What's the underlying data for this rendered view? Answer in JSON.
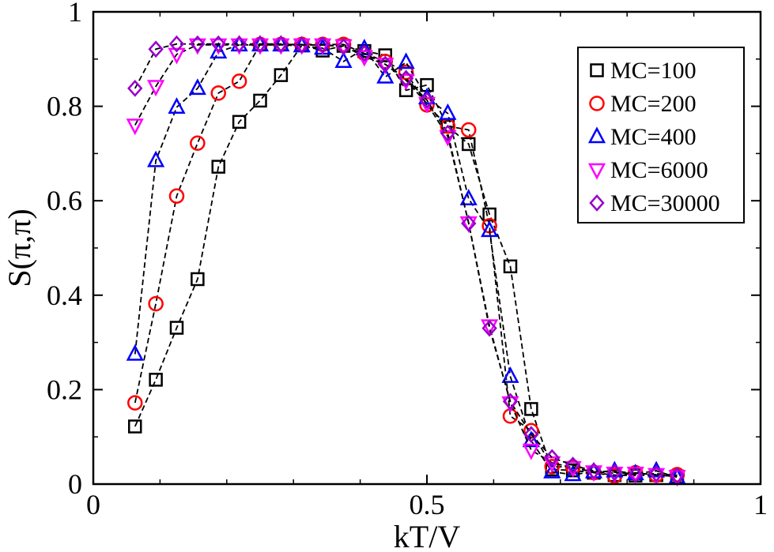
{
  "chart_data": {
    "type": "line",
    "title": "",
    "xlabel": "kT/V",
    "ylabel": "S(π,π)",
    "xlim": [
      0,
      1
    ],
    "ylim": [
      0,
      1
    ],
    "xticks": [
      "0",
      "0.5",
      "1"
    ],
    "yticks": [
      "0",
      "0.2",
      "0.4",
      "0.6",
      "0.8",
      "1"
    ],
    "grid": false,
    "legend_position": "top-right",
    "series": [
      {
        "name": "MC=100",
        "marker": "square",
        "color": "#000000",
        "x": [
          0.0625,
          0.09375,
          0.125,
          0.15625,
          0.1875,
          0.21875,
          0.25,
          0.28125,
          0.3125,
          0.34375,
          0.375,
          0.40625,
          0.4375,
          0.46875,
          0.5,
          0.53125,
          0.5625,
          0.59375,
          0.625,
          0.65625,
          0.6875,
          0.71875,
          0.75,
          0.78125,
          0.8125,
          0.84375,
          0.875
        ],
        "y": [
          0.122,
          0.221,
          0.331,
          0.434,
          0.672,
          0.767,
          0.812,
          0.866,
          0.929,
          0.918,
          0.928,
          0.917,
          0.908,
          0.834,
          0.845,
          0.757,
          0.72,
          0.571,
          0.461,
          0.159,
          0.031,
          0.029,
          0.024,
          0.019,
          0.018,
          0.019,
          0.016
        ]
      },
      {
        "name": "MC=200",
        "marker": "circle",
        "color": "#ff0000",
        "x": [
          0.0625,
          0.09375,
          0.125,
          0.15625,
          0.1875,
          0.21875,
          0.25,
          0.28125,
          0.3125,
          0.34375,
          0.375,
          0.40625,
          0.4375,
          0.46875,
          0.5,
          0.53125,
          0.5625,
          0.59375,
          0.625,
          0.65625,
          0.6875,
          0.71875,
          0.75,
          0.78125,
          0.8125,
          0.84375,
          0.875
        ],
        "y": [
          0.172,
          0.382,
          0.61,
          0.722,
          0.828,
          0.853,
          0.931,
          0.931,
          0.931,
          0.931,
          0.931,
          0.912,
          0.895,
          0.872,
          0.803,
          0.758,
          0.75,
          0.547,
          0.144,
          0.113,
          0.037,
          0.036,
          0.024,
          0.017,
          0.024,
          0.019,
          0.02
        ]
      },
      {
        "name": "MC=400",
        "marker": "triangle-up",
        "color": "#0000ff",
        "x": [
          0.0625,
          0.09375,
          0.125,
          0.15625,
          0.1875,
          0.21875,
          0.25,
          0.28125,
          0.3125,
          0.34375,
          0.375,
          0.40625,
          0.4375,
          0.46875,
          0.5,
          0.53125,
          0.5625,
          0.59375,
          0.625,
          0.65625,
          0.6875,
          0.71875,
          0.75,
          0.78125,
          0.8125,
          0.84375,
          0.875
        ],
        "y": [
          0.275,
          0.685,
          0.798,
          0.838,
          0.915,
          0.93,
          0.93,
          0.93,
          0.928,
          0.923,
          0.895,
          0.922,
          0.862,
          0.893,
          0.818,
          0.785,
          0.604,
          0.537,
          0.228,
          0.092,
          0.026,
          0.02,
          0.026,
          0.028,
          0.022,
          0.028,
          0.014
        ]
      },
      {
        "name": "MC=6000",
        "marker": "triangle-down",
        "color": "#ff00ff",
        "x": [
          0.0625,
          0.09375,
          0.125,
          0.15625,
          0.1875,
          0.21875,
          0.25,
          0.28125,
          0.3125,
          0.34375,
          0.375,
          0.40625,
          0.4375,
          0.46875,
          0.5,
          0.53125,
          0.5625,
          0.59375,
          0.625,
          0.65625,
          0.6875,
          0.71875,
          0.75,
          0.78125,
          0.8125,
          0.84375,
          0.875
        ],
        "y": [
          0.76,
          0.842,
          0.91,
          0.93,
          0.93,
          0.93,
          0.93,
          0.93,
          0.93,
          0.93,
          0.928,
          0.905,
          0.889,
          0.855,
          0.806,
          0.736,
          0.553,
          0.335,
          0.172,
          0.072,
          0.045,
          0.035,
          0.026,
          0.023,
          0.023,
          0.02,
          0.016
        ]
      },
      {
        "name": "MC=30000",
        "marker": "diamond",
        "color": "#9900cc",
        "x": [
          0.0625,
          0.09375,
          0.125,
          0.15625,
          0.1875,
          0.21875,
          0.25,
          0.28125,
          0.3125,
          0.34375,
          0.375,
          0.40625,
          0.4375,
          0.46875,
          0.5,
          0.53125,
          0.5625,
          0.59375,
          0.625,
          0.65625,
          0.6875,
          0.71875,
          0.75,
          0.78125,
          0.8125,
          0.84375,
          0.875
        ],
        "y": [
          0.838,
          0.921,
          0.932,
          0.932,
          0.932,
          0.932,
          0.932,
          0.932,
          0.93,
          0.93,
          0.926,
          0.912,
          0.889,
          0.859,
          0.813,
          0.743,
          0.552,
          0.33,
          0.175,
          0.105,
          0.056,
          0.04,
          0.028,
          0.025,
          0.02,
          0.022,
          0.018
        ]
      }
    ]
  }
}
